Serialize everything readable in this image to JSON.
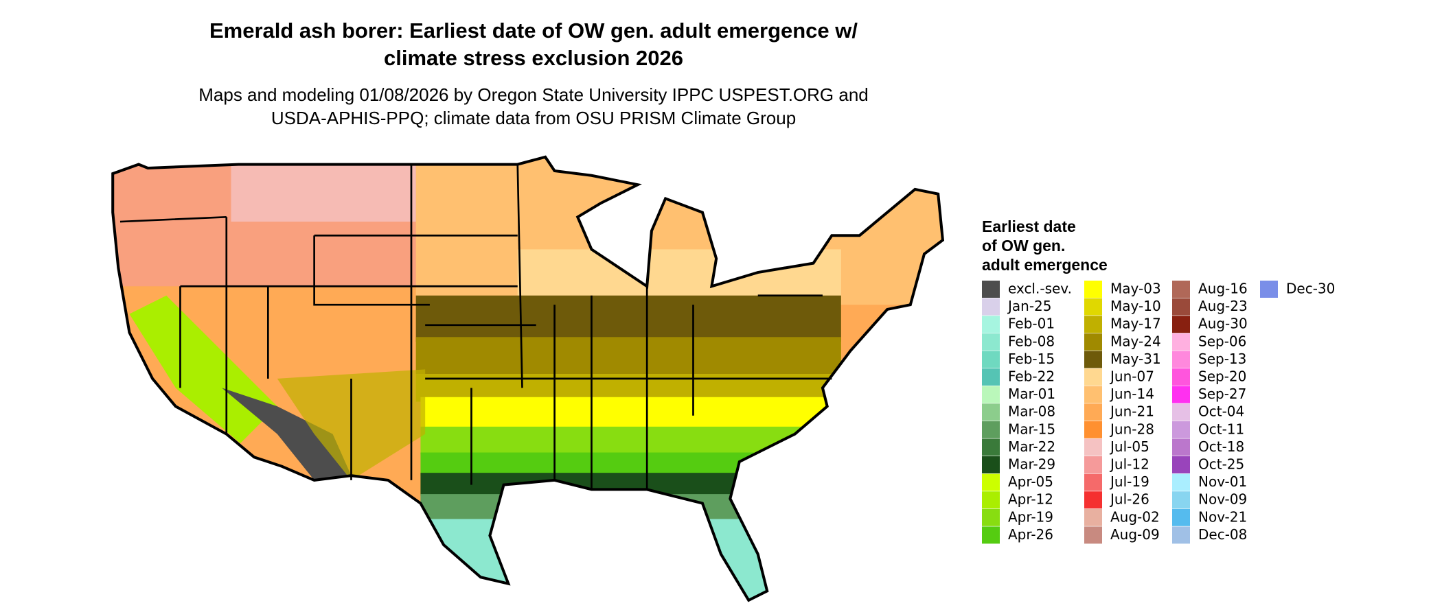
{
  "header": {
    "title": [
      "Emerald ash borer: Earliest date of OW gen. adult emergence w/",
      "climate stress exclusion 2026"
    ],
    "subtitle": [
      "Maps and modeling 01/08/2026 by Oregon State University IPPC USPEST.ORG and",
      "USDA-APHIS-PPQ; climate data from OSU PRISM Climate Group"
    ]
  },
  "legend": {
    "title": [
      "Earliest date",
      "of OW gen.",
      "adult emergence"
    ],
    "items": [
      {
        "label": "excl.-sev.",
        "color": "#4d4d4d"
      },
      {
        "label": "Jan-25",
        "color": "#d9d0ea"
      },
      {
        "label": "Feb-01",
        "color": "#a6f5e0"
      },
      {
        "label": "Feb-08",
        "color": "#8ce8cf"
      },
      {
        "label": "Feb-15",
        "color": "#6fd9c0"
      },
      {
        "label": "Feb-22",
        "color": "#55c4b4"
      },
      {
        "label": "Mar-01",
        "color": "#baf7ba"
      },
      {
        "label": "Mar-08",
        "color": "#8ccd8c"
      },
      {
        "label": "Mar-15",
        "color": "#5e9e5e"
      },
      {
        "label": "Mar-22",
        "color": "#3a7a3a"
      },
      {
        "label": "Mar-29",
        "color": "#1a4f1a"
      },
      {
        "label": "Apr-05",
        "color": "#ccff00"
      },
      {
        "label": "Apr-12",
        "color": "#aaee00"
      },
      {
        "label": "Apr-19",
        "color": "#88dd11"
      },
      {
        "label": "Apr-26",
        "color": "#55cc11"
      },
      {
        "label": "May-03",
        "color": "#ffff00"
      },
      {
        "label": "May-10",
        "color": "#e0d800"
      },
      {
        "label": "May-17",
        "color": "#c0b000"
      },
      {
        "label": "May-24",
        "color": "#a08a00"
      },
      {
        "label": "May-31",
        "color": "#6e5a0a"
      },
      {
        "label": "Jun-07",
        "color": "#ffd890"
      },
      {
        "label": "Jun-14",
        "color": "#ffc070"
      },
      {
        "label": "Jun-21",
        "color": "#ffaa55"
      },
      {
        "label": "Jun-28",
        "color": "#ff9030"
      },
      {
        "label": "Jul-05",
        "color": "#f5c2c2"
      },
      {
        "label": "Jul-12",
        "color": "#f59a9a"
      },
      {
        "label": "Jul-19",
        "color": "#f56a6a"
      },
      {
        "label": "Jul-26",
        "color": "#f53030"
      },
      {
        "label": "Aug-02",
        "color": "#e8b0a0"
      },
      {
        "label": "Aug-09",
        "color": "#c88a80"
      },
      {
        "label": "Aug-16",
        "color": "#b06858"
      },
      {
        "label": "Aug-23",
        "color": "#9a4a3a"
      },
      {
        "label": "Aug-30",
        "color": "#882010"
      },
      {
        "label": "Sep-06",
        "color": "#ffb0e0"
      },
      {
        "label": "Sep-13",
        "color": "#ff88dd"
      },
      {
        "label": "Sep-20",
        "color": "#ff55dd"
      },
      {
        "label": "Sep-27",
        "color": "#ff30f0"
      },
      {
        "label": "Oct-04",
        "color": "#e6c0e6"
      },
      {
        "label": "Oct-11",
        "color": "#cc99dd"
      },
      {
        "label": "Oct-18",
        "color": "#bb77cc"
      },
      {
        "label": "Oct-25",
        "color": "#9944bb"
      },
      {
        "label": "Nov-01",
        "color": "#aaeeff"
      },
      {
        "label": "Nov-09",
        "color": "#88d5f0"
      },
      {
        "label": "Nov-21",
        "color": "#55bbee"
      },
      {
        "label": "Dec-08",
        "color": "#a0c0e6"
      },
      {
        "label": "Dec-30",
        "color": "#7a8ee8"
      }
    ]
  }
}
